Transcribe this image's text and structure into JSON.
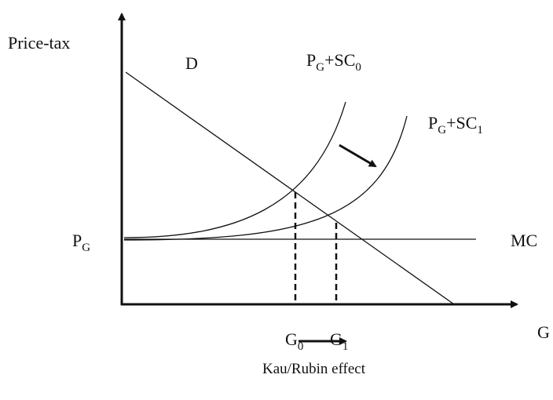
{
  "axis_label_y": "Price-tax",
  "axis_label_x": "G",
  "demand_label": "D",
  "curve_sc0_label": [
    "P",
    "G",
    "+SC",
    "0"
  ],
  "curve_sc1_label": [
    "P",
    "G",
    "+SC",
    "1"
  ],
  "price_label": [
    "P",
    "G"
  ],
  "mc_label": "MC",
  "g0_label": [
    "G",
    "0"
  ],
  "g1_label": [
    "G",
    "1"
  ],
  "effect_label": "Kau/Rubin effect"
}
